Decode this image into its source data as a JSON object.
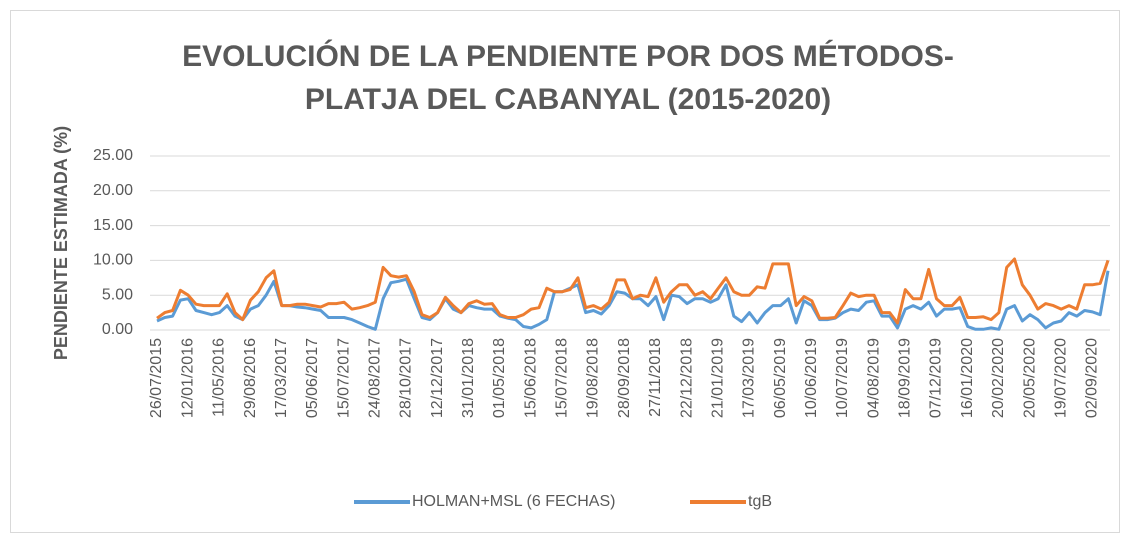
{
  "chart_data": {
    "type": "line",
    "title": "EVOLUCIÓN DE LA PENDIENTE POR DOS MÉTODOS-",
    "subtitle": "PLATJA DEL CABANYAL (2015-2020)",
    "y_label": "PENDIENTE ESTIMADA (%)",
    "categories": [
      "26/07/2015",
      null,
      null,
      null,
      "12/01/2016",
      null,
      null,
      null,
      "11/05/2016",
      null,
      null,
      null,
      "29/08/2016",
      null,
      null,
      null,
      "17/03/2017",
      null,
      null,
      null,
      "05/06/2017",
      null,
      null,
      null,
      "15/07/2017",
      null,
      null,
      null,
      "24/08/2017",
      null,
      null,
      null,
      "28/10/2017",
      null,
      null,
      null,
      "12/12/2017",
      null,
      null,
      null,
      "31/01/2018",
      null,
      null,
      null,
      "01/05/2018",
      null,
      null,
      null,
      "15/06/2018",
      null,
      null,
      null,
      "15/07/2018",
      null,
      null,
      null,
      "19/08/2018",
      null,
      null,
      null,
      "28/09/2018",
      null,
      null,
      null,
      "27/11/2018",
      null,
      null,
      null,
      "22/12/2018",
      null,
      null,
      null,
      "21/01/2019",
      null,
      null,
      null,
      "17/03/2019",
      null,
      null,
      null,
      "06/05/2019",
      null,
      null,
      null,
      "10/06/2019",
      null,
      null,
      null,
      "10/07/2019",
      null,
      null,
      null,
      "04/08/2019",
      null,
      null,
      null,
      "18/09/2019",
      null,
      null,
      null,
      "07/12/2019",
      null,
      null,
      null,
      "16/01/2020",
      null,
      null,
      null,
      "20/02/2020",
      null,
      null,
      null,
      "20/05/2020",
      null,
      null,
      null,
      "19/07/2020",
      null,
      null,
      null,
      "02/09/2020",
      null,
      null
    ],
    "series": [
      {
        "name": "HOLMAN+MSL (6 FECHAS)",
        "color": "#5b9bd5",
        "values": [
          1.3,
          1.8,
          2.0,
          4.3,
          4.5,
          2.8,
          2.5,
          2.2,
          2.5,
          3.5,
          2.0,
          1.5,
          3.0,
          3.5,
          5.0,
          7.0,
          3.5,
          3.5,
          3.3,
          3.2,
          3.0,
          2.8,
          1.8,
          1.8,
          1.8,
          1.5,
          1.0,
          0.5,
          0.1,
          4.5,
          6.8,
          7.0,
          7.3,
          4.5,
          1.8,
          1.5,
          2.5,
          4.5,
          3.0,
          2.5,
          3.5,
          3.2,
          3.0,
          3.0,
          2.0,
          1.7,
          1.5,
          0.5,
          0.3,
          0.8,
          1.5,
          5.5,
          5.5,
          6.0,
          6.5,
          2.5,
          2.8,
          2.3,
          3.5,
          5.5,
          5.3,
          4.5,
          4.5,
          3.5,
          4.8,
          1.5,
          5.0,
          4.8,
          3.8,
          4.5,
          4.5,
          4.0,
          4.5,
          6.5,
          2.0,
          1.2,
          2.5,
          1.0,
          2.5,
          3.5,
          3.5,
          4.5,
          1.0,
          4.2,
          3.5,
          1.5,
          1.5,
          1.7,
          2.5,
          3.0,
          2.8,
          4.0,
          4.2,
          2.0,
          2.0,
          0.3,
          3.0,
          3.5,
          3.0,
          4.0,
          2.0,
          3.0,
          3.0,
          3.2,
          0.5,
          0.1,
          0.1,
          0.3,
          0.1,
          3.0,
          3.5,
          1.3,
          2.2,
          1.5,
          0.3,
          1.0,
          1.3,
          2.5,
          2.0,
          2.8,
          2.6,
          2.2,
          8.5
        ]
      },
      {
        "name": "tgB",
        "color": "#ed7d31",
        "values": [
          1.7,
          2.5,
          2.8,
          5.7,
          5.0,
          3.7,
          3.5,
          3.5,
          3.5,
          5.2,
          2.5,
          1.5,
          4.3,
          5.5,
          7.5,
          8.5,
          3.5,
          3.5,
          3.7,
          3.7,
          3.5,
          3.3,
          3.8,
          3.8,
          4.0,
          3.0,
          3.2,
          3.5,
          4.0,
          9.0,
          7.8,
          7.6,
          7.8,
          5.5,
          2.2,
          1.8,
          2.5,
          4.7,
          3.5,
          2.5,
          3.8,
          4.2,
          3.7,
          3.8,
          2.2,
          1.8,
          1.8,
          2.2,
          3.0,
          3.2,
          6.0,
          5.5,
          5.5,
          5.8,
          7.5,
          3.2,
          3.5,
          3.0,
          4.0,
          7.2,
          7.2,
          4.5,
          5.0,
          4.8,
          7.5,
          4.0,
          5.5,
          6.5,
          6.5,
          5.0,
          5.5,
          4.5,
          6.0,
          7.5,
          5.5,
          5.0,
          5.0,
          6.2,
          6.0,
          9.5,
          9.5,
          9.5,
          3.5,
          4.8,
          4.2,
          1.7,
          1.7,
          1.8,
          3.5,
          5.3,
          4.8,
          5.0,
          5.0,
          2.5,
          2.5,
          1.0,
          5.8,
          4.5,
          4.5,
          8.7,
          4.5,
          3.5,
          3.5,
          4.7,
          1.8,
          1.8,
          1.9,
          1.5,
          2.5,
          9.0,
          10.2,
          6.5,
          5.0,
          3.0,
          3.8,
          3.5,
          3.0,
          3.5,
          3.0,
          6.5,
          6.5,
          6.7,
          10.0
        ]
      }
    ],
    "ylim": [
      0,
      25
    ],
    "yticks": [
      {
        "value": 0,
        "label": "0.00"
      },
      {
        "value": 5,
        "label": "5.00"
      },
      {
        "value": 10,
        "label": "10.00"
      },
      {
        "value": 15,
        "label": "15.00"
      },
      {
        "value": 20,
        "label": "20.00"
      },
      {
        "value": 25,
        "label": "25.00"
      }
    ],
    "grid": true,
    "legend": "bottom"
  }
}
